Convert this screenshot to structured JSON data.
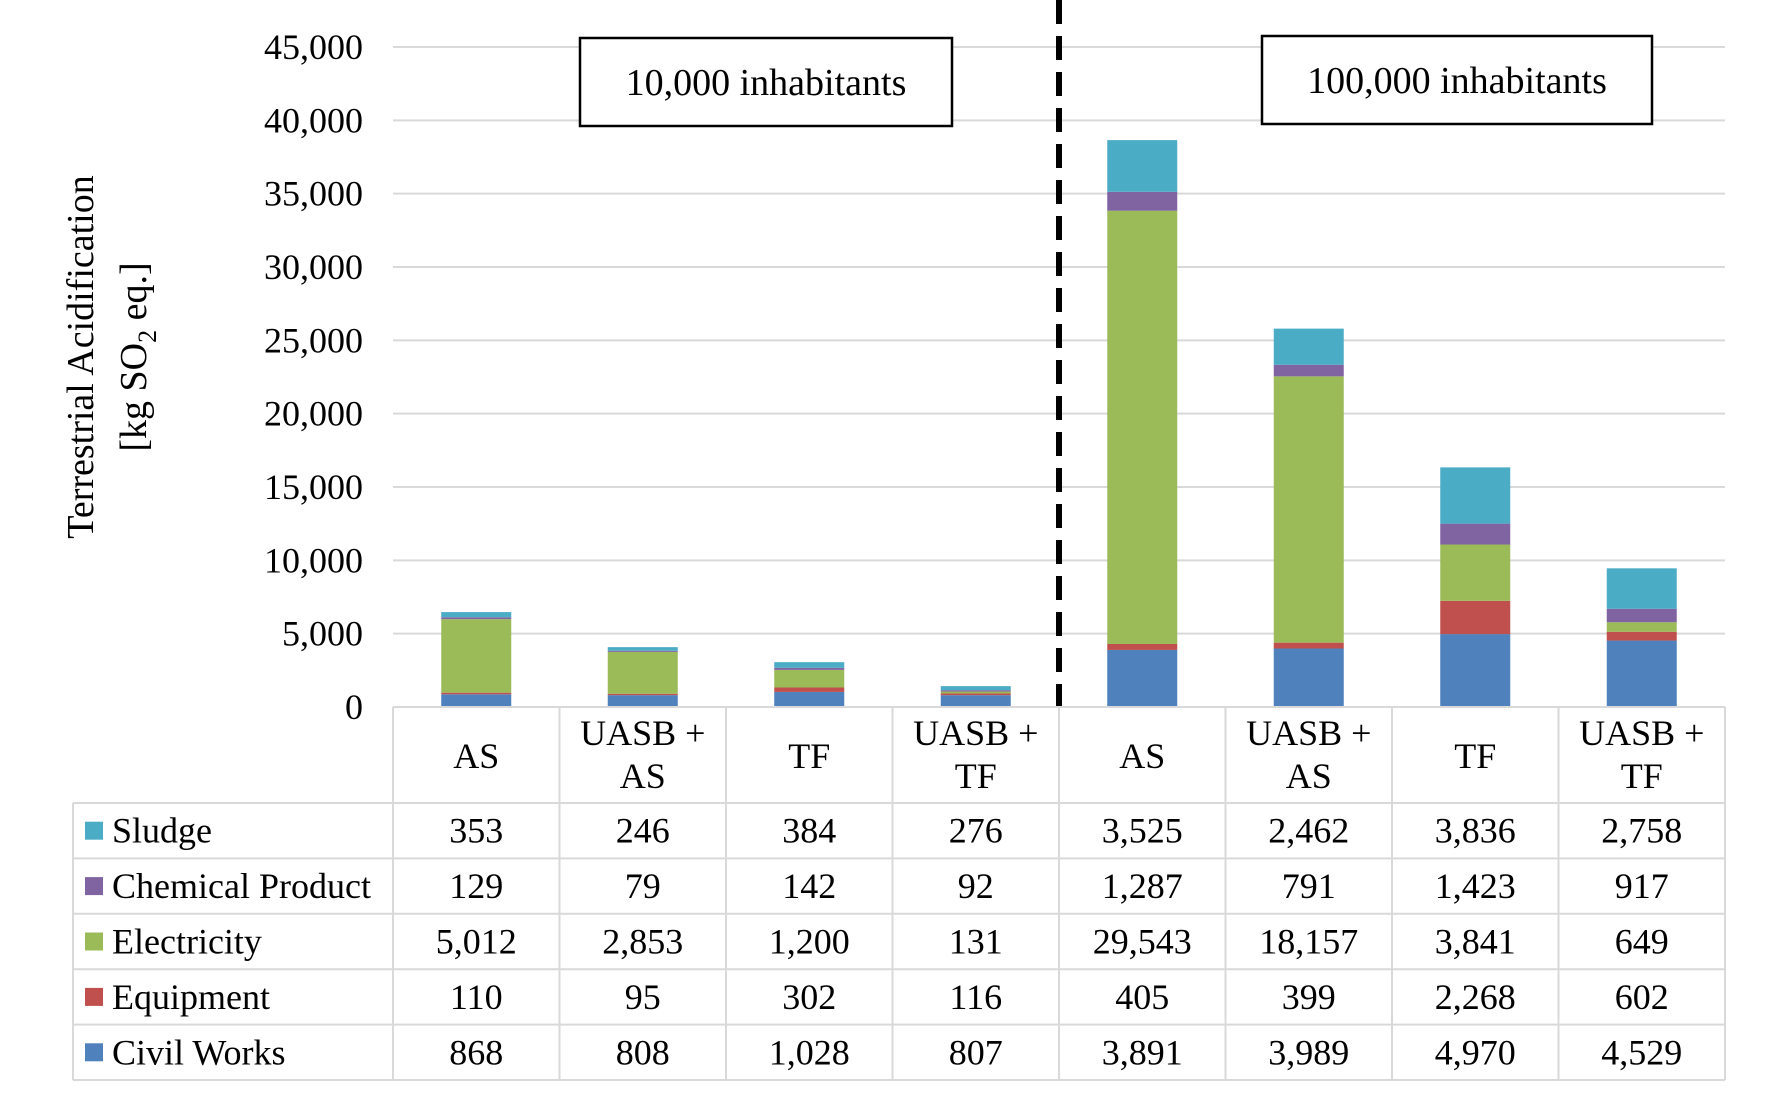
{
  "chart_data": {
    "type": "bar",
    "stacked": true,
    "ylabel_line1": "Terrestrial Acidification",
    "ylabel_line2_pre": "[kg SO",
    "ylabel_line2_sub": "2",
    "ylabel_line2_post": " eq.]",
    "ylim": [
      0,
      45000
    ],
    "yticks": [
      0,
      5000,
      10000,
      15000,
      20000,
      25000,
      30000,
      35000,
      40000,
      45000
    ],
    "ytick_labels": [
      "0",
      "5,000",
      "10,000",
      "15,000",
      "20,000",
      "25,000",
      "30,000",
      "35,000",
      "40,000",
      "45,000"
    ],
    "grid": true,
    "groups": [
      {
        "label": "10,000 inhabitants"
      },
      {
        "label": "100,000 inhabitants"
      }
    ],
    "categories": [
      {
        "line1": "AS",
        "line2": ""
      },
      {
        "line1": "UASB +",
        "line2": "AS"
      },
      {
        "line1": "TF",
        "line2": ""
      },
      {
        "line1": "UASB +",
        "line2": "TF"
      },
      {
        "line1": "AS",
        "line2": ""
      },
      {
        "line1": "UASB +",
        "line2": "AS"
      },
      {
        "line1": "TF",
        "line2": ""
      },
      {
        "line1": "UASB +",
        "line2": "TF"
      }
    ],
    "series": [
      {
        "name": "Civil Works",
        "color": "#4f81bd",
        "values": [
          868,
          808,
          1028,
          807,
          3891,
          3989,
          4970,
          4529
        ],
        "labels": [
          "868",
          "808",
          "1,028",
          "807",
          "3,891",
          "3,989",
          "4,970",
          "4,529"
        ]
      },
      {
        "name": "Equipment",
        "color": "#c0504d",
        "values": [
          110,
          95,
          302,
          116,
          405,
          399,
          2268,
          602
        ],
        "labels": [
          "110",
          "95",
          "302",
          "116",
          "405",
          "399",
          "2,268",
          "602"
        ]
      },
      {
        "name": "Electricity",
        "color": "#9bbb59",
        "values": [
          5012,
          2853,
          1200,
          131,
          29543,
          18157,
          3841,
          649
        ],
        "labels": [
          "5,012",
          "2,853",
          "1,200",
          "131",
          "29,543",
          "18,157",
          "3,841",
          "649"
        ]
      },
      {
        "name": "Chemical Product",
        "color": "#8064a2",
        "values": [
          129,
          79,
          142,
          92,
          1287,
          791,
          1423,
          917
        ],
        "labels": [
          "129",
          "79",
          "142",
          "92",
          "1,287",
          "791",
          "1,423",
          "917"
        ]
      },
      {
        "name": "Sludge",
        "color": "#4bacc6",
        "values": [
          353,
          246,
          384,
          276,
          3525,
          2462,
          3836,
          2758
        ],
        "labels": [
          "353",
          "246",
          "384",
          "276",
          "3,525",
          "2,462",
          "3,836",
          "2,758"
        ]
      }
    ],
    "table_row_order": [
      "Sludge",
      "Chemical Product",
      "Electricity",
      "Equipment",
      "Civil Works"
    ]
  }
}
